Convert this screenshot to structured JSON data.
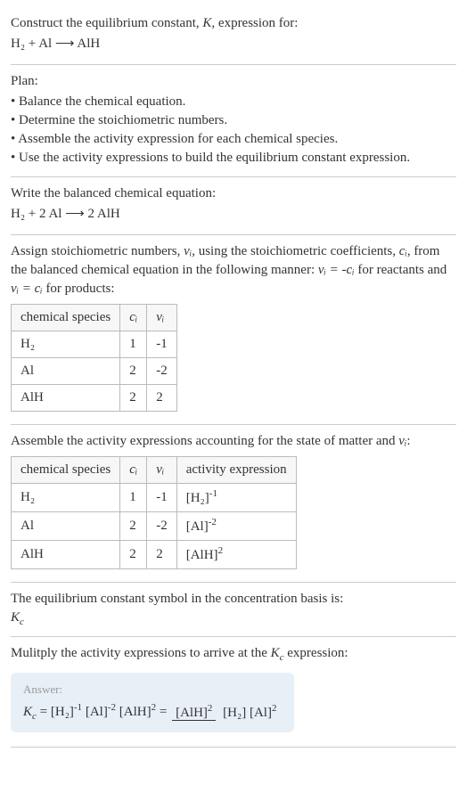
{
  "intro": {
    "construct_text": "Construct the equilibrium constant, ",
    "K": "K",
    "expression_for": ", expression for:",
    "equation_unbalanced": "H₂ + Al ⟶ AlH"
  },
  "plan": {
    "title": "Plan:",
    "items": [
      "Balance the chemical equation.",
      "Determine the stoichiometric numbers.",
      "Assemble the activity expression for each chemical species.",
      "Use the activity expressions to build the equilibrium constant expression."
    ]
  },
  "balanced": {
    "write_text": "Write the balanced chemical equation:",
    "equation": "H₂ + 2 Al ⟶ 2 AlH"
  },
  "assign": {
    "text_a": "Assign stoichiometric numbers, ",
    "nu_i": "νᵢ",
    "text_b": ", using the stoichiometric coefficients, ",
    "c_i": "cᵢ",
    "text_c": ", from the balanced chemical equation in the following manner: ",
    "rel_reactants": "νᵢ = -cᵢ",
    "text_d": " for reactants and ",
    "rel_products": "νᵢ = cᵢ",
    "text_e": " for products:",
    "table": {
      "headers": [
        "chemical species",
        "cᵢ",
        "νᵢ"
      ],
      "rows": [
        [
          "H₂",
          "1",
          "-1"
        ],
        [
          "Al",
          "2",
          "-2"
        ],
        [
          "AlH",
          "2",
          "2"
        ]
      ]
    }
  },
  "activity": {
    "text_a": "Assemble the activity expressions accounting for the state of matter and ",
    "nu_i": "νᵢ",
    "text_b": ":",
    "table": {
      "headers": [
        "chemical species",
        "cᵢ",
        "νᵢ",
        "activity expression"
      ],
      "rows": [
        {
          "species": "H₂",
          "c": "1",
          "nu": "-1",
          "base": "[H₂]",
          "exp": "-1"
        },
        {
          "species": "Al",
          "c": "2",
          "nu": "-2",
          "base": "[Al]",
          "exp": "-2"
        },
        {
          "species": "AlH",
          "c": "2",
          "nu": "2",
          "base": "[AlH]",
          "exp": "2"
        }
      ]
    }
  },
  "constant_basis": {
    "text": "The equilibrium constant symbol in the concentration basis is:",
    "Kc": "K",
    "Kc_sub": "c"
  },
  "multiply": {
    "text_a": "Mulitply the activity expressions to arrive at the ",
    "Kc": "K",
    "Kc_sub": "c",
    "text_b": " expression:"
  },
  "answer": {
    "label": "Answer:",
    "Kc": "K",
    "Kc_sub": "c",
    "eq": " = ",
    "term1_base": "[H₂]",
    "term1_exp": "-1",
    "term2_base": "[Al]",
    "term2_exp": "-2",
    "term3_base": "[AlH]",
    "term3_exp": "2",
    "eq2": " = ",
    "frac_num_base": "[AlH]",
    "frac_num_exp": "2",
    "frac_den1_base": "[H₂]",
    "frac_den2_base": "[Al]",
    "frac_den2_exp": "2"
  },
  "style": {
    "background_color": "#ffffff",
    "text_color": "#333333",
    "border_color": "#cccccc",
    "answer_box_bg": "#e8f0f7",
    "answer_label_color": "#999999",
    "base_fontsize": 15,
    "answer_label_fontsize": 13
  }
}
